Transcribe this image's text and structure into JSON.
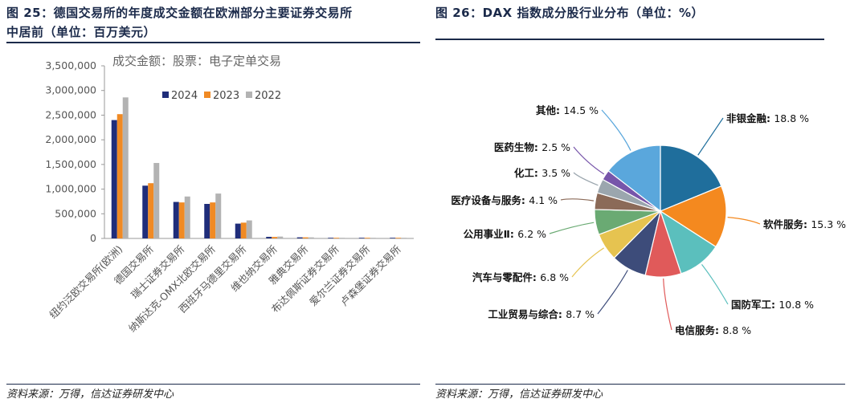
{
  "left_panel": {
    "title_line1": "图 25：德国交易所的年度成交金额在欧洲部分主要证券交易所",
    "title_line2": "中居前（单位：百万美元）",
    "source": "资料来源：万得，信达证券研发中心"
  },
  "right_panel": {
    "title": "图 26：DAX 指数成分股行业分布（单位：%）",
    "source": "资料来源：万得，信达证券研发中心"
  },
  "chart_data": [
    {
      "type": "bar",
      "title": "成交金额：股票：电子定单交易",
      "xlabel": "",
      "ylabel": "",
      "ylim": [
        0,
        3500000
      ],
      "yticks": [
        0,
        500000,
        1000000,
        1500000,
        2000000,
        2500000,
        3000000,
        3500000
      ],
      "ytick_labels": [
        "0",
        "500,000",
        "1,000,000",
        "1,500,000",
        "2,000,000",
        "2,500,000",
        "3,000,000",
        "3,500,000"
      ],
      "legend_position": "top",
      "categories": [
        "纽约泛欧交易所(欧洲)",
        "德国交易所",
        "瑞士证券交易所",
        "纳斯达克-OMX北欧交易所",
        "西班牙马德里交易所",
        "维也纳交易所",
        "雅典交易所",
        "布达佩斯证券交易所",
        "爱尔兰证券交易所",
        "卢森堡证券交易所"
      ],
      "series": [
        {
          "name": "2024",
          "color": "#1f2d7a",
          "values": [
            2400000,
            1070000,
            740000,
            700000,
            300000,
            32000,
            22000,
            8000,
            4000,
            1000
          ]
        },
        {
          "name": "2023",
          "color": "#f08a24",
          "values": [
            2520000,
            1120000,
            730000,
            730000,
            320000,
            30000,
            22000,
            8000,
            4000,
            1000
          ]
        },
        {
          "name": "2022",
          "color": "#b3b3b3",
          "values": [
            2860000,
            1530000,
            850000,
            910000,
            365000,
            38000,
            22000,
            8000,
            4000,
            1000
          ]
        }
      ]
    },
    {
      "type": "pie",
      "title": "",
      "slices": [
        {
          "label": "非银金融",
          "value": 18.8,
          "display": "18.8 %",
          "color": "#1f6e9c"
        },
        {
          "label": "软件服务",
          "value": 15.3,
          "display": "15.3 %",
          "color": "#f4891f"
        },
        {
          "label": "国防军工",
          "value": 10.8,
          "display": "10.8 %",
          "color": "#5bbfbd"
        },
        {
          "label": "电信服务",
          "value": 8.8,
          "display": "8.8 %",
          "color": "#e05a5a"
        },
        {
          "label": "工业贸易与综合",
          "value": 8.7,
          "display": "8.7 %",
          "color": "#3d4c7a"
        },
        {
          "label": "汽车与零配件",
          "value": 6.8,
          "display": "6.8 %",
          "color": "#e6c350"
        },
        {
          "label": "公用事业Ⅱ",
          "value": 6.2,
          "display": "6.2 %",
          "color": "#6aaa73"
        },
        {
          "label": "医疗设备与服务",
          "value": 4.1,
          "display": "4.1 %",
          "color": "#8b6a58"
        },
        {
          "label": "化工",
          "value": 3.5,
          "display": "3.5 %",
          "color": "#9ba6ae"
        },
        {
          "label": "医药生物",
          "value": 2.5,
          "display": "2.5 %",
          "color": "#7755aa"
        },
        {
          "label": "其他",
          "value": 14.5,
          "display": "14.5 %",
          "color": "#5aa7dc"
        }
      ]
    }
  ]
}
